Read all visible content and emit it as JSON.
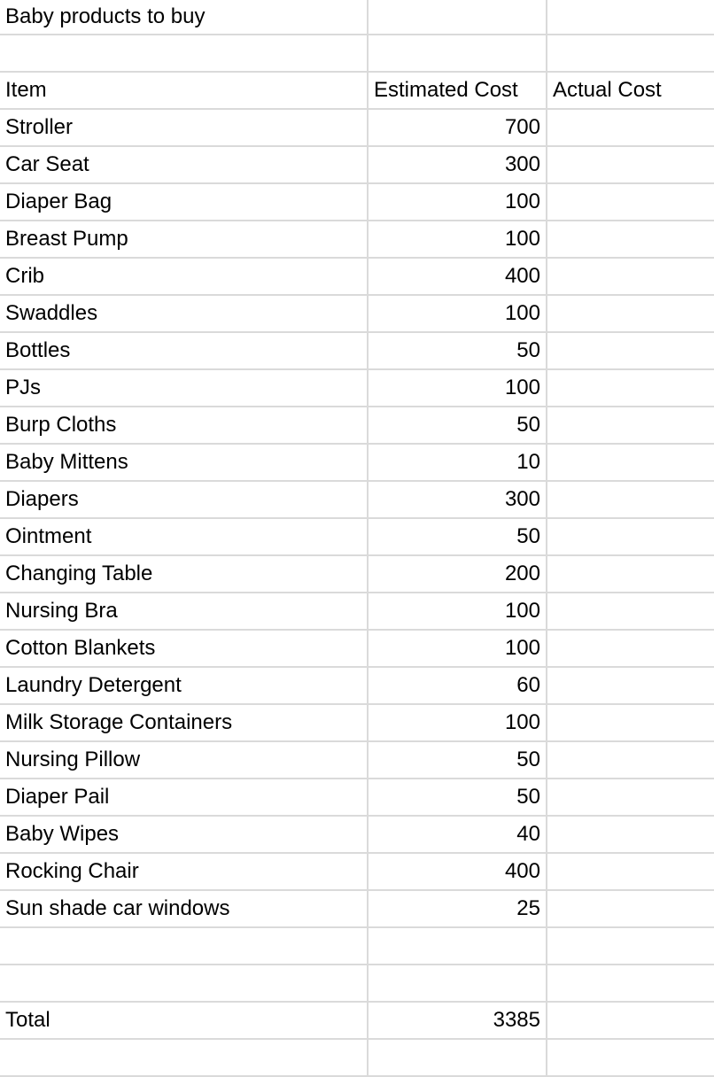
{
  "title": "Baby products to buy",
  "headers": {
    "item": "Item",
    "estimated": "Estimated Cost",
    "actual": "Actual Cost"
  },
  "items": [
    {
      "name": "Stroller",
      "estimated": "700",
      "actual": ""
    },
    {
      "name": "Car Seat",
      "estimated": "300",
      "actual": ""
    },
    {
      "name": "Diaper Bag",
      "estimated": "100",
      "actual": ""
    },
    {
      "name": "Breast Pump",
      "estimated": "100",
      "actual": ""
    },
    {
      "name": "Crib",
      "estimated": "400",
      "actual": ""
    },
    {
      "name": "Swaddles",
      "estimated": "100",
      "actual": ""
    },
    {
      "name": "Bottles",
      "estimated": "50",
      "actual": ""
    },
    {
      "name": "PJs",
      "estimated": "100",
      "actual": ""
    },
    {
      "name": "Burp Cloths",
      "estimated": "50",
      "actual": ""
    },
    {
      "name": "Baby Mittens",
      "estimated": "10",
      "actual": ""
    },
    {
      "name": "Diapers",
      "estimated": "300",
      "actual": ""
    },
    {
      "name": "Ointment",
      "estimated": "50",
      "actual": ""
    },
    {
      "name": "Changing Table",
      "estimated": "200",
      "actual": ""
    },
    {
      "name": "Nursing Bra",
      "estimated": "100",
      "actual": ""
    },
    {
      "name": "Cotton Blankets",
      "estimated": "100",
      "actual": ""
    },
    {
      "name": "Laundry Detergent",
      "estimated": "60",
      "actual": ""
    },
    {
      "name": "Milk Storage Containers",
      "estimated": "100",
      "actual": ""
    },
    {
      "name": "Nursing Pillow",
      "estimated": "50",
      "actual": ""
    },
    {
      "name": "Diaper Pail",
      "estimated": "50",
      "actual": ""
    },
    {
      "name": "Baby Wipes",
      "estimated": "40",
      "actual": ""
    },
    {
      "name": "Rocking Chair",
      "estimated": "400",
      "actual": ""
    },
    {
      "name": "Sun shade car windows",
      "estimated": "25",
      "actual": ""
    }
  ],
  "total": {
    "label": "Total",
    "estimated": "3385",
    "actual": ""
  }
}
